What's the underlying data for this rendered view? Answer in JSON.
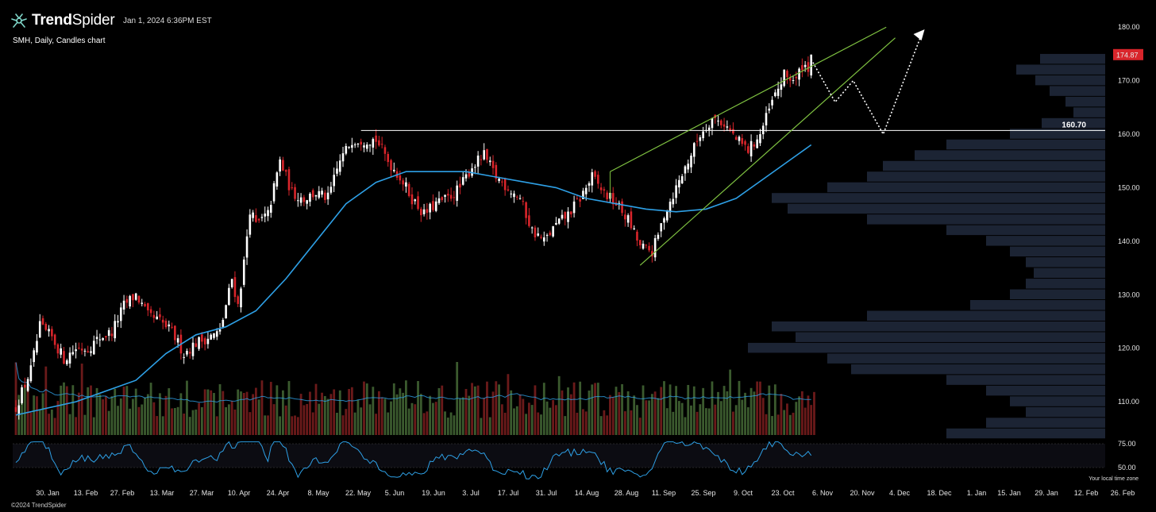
{
  "header": {
    "brand_bold": "Trend",
    "brand_light": "Spider",
    "datetime": "Jan 1, 2024 6:36PM EST",
    "subtitle": "SMH, Daily, Candles chart",
    "copyright": "©2024 TrendSpider",
    "timezone_note": "Your local time zone"
  },
  "icons": {
    "logo": "spider-logo-icon",
    "arrow": "dotted-projection-arrow"
  },
  "colors": {
    "up": "#ffffff",
    "down": "#d9252b",
    "ma": "#2ea0e6",
    "wedge": "#7fc241",
    "vol_up": "#3b5a2e",
    "vol_down": "#6b1a1a",
    "profile": "#1c2434",
    "price_badge": "#d9252b",
    "rsi": "#2ea0e6"
  },
  "chart_data": {
    "type": "candlestick",
    "symbol": "SMH",
    "interval": "Daily",
    "y_axis": {
      "ticks": [
        "180.00",
        "170.00",
        "160.00",
        "150.00",
        "140.00",
        "130.00",
        "120.00",
        "110.00"
      ],
      "range": [
        102,
        183
      ]
    },
    "x_axis": {
      "ticks": [
        "30. Jan",
        "13. Feb",
        "27. Feb",
        "13. Mar",
        "27. Mar",
        "10. Apr",
        "24. Apr",
        "8. May",
        "22. May",
        "5. Jun",
        "19. Jun",
        "3. Jul",
        "17. Jul",
        "31. Jul",
        "14. Aug",
        "28. Aug",
        "11. Sep",
        "25. Sep",
        "9. Oct",
        "23. Oct",
        "6. Nov",
        "20. Nov",
        "4. Dec",
        "18. Dec",
        "1. Jan",
        "15. Jan",
        "29. Jan",
        "12. Feb",
        "26. Feb"
      ]
    },
    "last_price": "174.87",
    "horizontal_level": {
      "value": 160.7,
      "label": "160.70"
    },
    "close_anchors": [
      [
        0,
        109
      ],
      [
        5,
        116
      ],
      [
        8,
        124
      ],
      [
        12,
        122
      ],
      [
        16,
        118
      ],
      [
        20,
        120
      ],
      [
        24,
        120
      ],
      [
        28,
        122
      ],
      [
        32,
        123
      ],
      [
        36,
        128
      ],
      [
        40,
        130
      ],
      [
        44,
        126
      ],
      [
        48,
        125
      ],
      [
        52,
        123
      ],
      [
        56,
        119
      ],
      [
        60,
        121
      ],
      [
        64,
        122
      ],
      [
        68,
        123
      ],
      [
        72,
        133
      ],
      [
        74,
        128
      ],
      [
        76,
        136
      ],
      [
        78,
        146
      ],
      [
        80,
        143
      ],
      [
        84,
        145
      ],
      [
        88,
        155
      ],
      [
        92,
        149
      ],
      [
        96,
        148
      ],
      [
        100,
        149
      ],
      [
        104,
        148
      ],
      [
        108,
        155
      ],
      [
        112,
        159
      ],
      [
        116,
        159
      ],
      [
        120,
        159
      ],
      [
        124,
        155
      ],
      [
        128,
        152
      ],
      [
        132,
        148
      ],
      [
        136,
        145
      ],
      [
        140,
        147
      ],
      [
        144,
        148
      ],
      [
        148,
        150
      ],
      [
        152,
        154
      ],
      [
        156,
        156
      ],
      [
        160,
        152
      ],
      [
        164,
        150
      ],
      [
        168,
        148
      ],
      [
        172,
        142
      ],
      [
        176,
        140
      ],
      [
        180,
        143
      ],
      [
        184,
        145
      ],
      [
        188,
        148
      ],
      [
        192,
        152
      ],
      [
        196,
        149
      ],
      [
        200,
        147
      ],
      [
        204,
        144
      ],
      [
        208,
        139
      ],
      [
        212,
        138
      ],
      [
        214,
        141
      ],
      [
        216,
        145
      ],
      [
        220,
        150
      ],
      [
        224,
        155
      ],
      [
        228,
        160
      ],
      [
        232,
        163
      ],
      [
        236,
        162
      ],
      [
        240,
        159
      ],
      [
        244,
        157
      ],
      [
        248,
        160
      ],
      [
        252,
        166
      ],
      [
        256,
        171
      ],
      [
        260,
        170
      ],
      [
        262,
        173
      ],
      [
        264,
        172.5
      ],
      [
        265,
        174.87
      ]
    ],
    "moving_average": {
      "anchors": [
        [
          0,
          107.5
        ],
        [
          20,
          110
        ],
        [
          40,
          114
        ],
        [
          50,
          119
        ],
        [
          60,
          122.5
        ],
        [
          70,
          124
        ],
        [
          80,
          127
        ],
        [
          90,
          133
        ],
        [
          100,
          140
        ],
        [
          110,
          147
        ],
        [
          120,
          151
        ],
        [
          130,
          153
        ],
        [
          140,
          153
        ],
        [
          150,
          153
        ],
        [
          160,
          152
        ],
        [
          170,
          151
        ],
        [
          180,
          150
        ],
        [
          190,
          148
        ],
        [
          200,
          147
        ],
        [
          210,
          146
        ],
        [
          220,
          145.5
        ],
        [
          230,
          146
        ],
        [
          240,
          148
        ],
        [
          250,
          152
        ],
        [
          260,
          156
        ],
        [
          265,
          158
        ]
      ]
    },
    "wedge_upper": [
      [
        198,
        153
      ],
      [
        290,
        180
      ]
    ],
    "wedge_lower": [
      [
        208,
        135.5
      ],
      [
        293,
        178
      ]
    ],
    "projection_path": [
      [
        265,
        174
      ],
      [
        273,
        166
      ],
      [
        279,
        170
      ],
      [
        289,
        160
      ],
      [
        302,
        179
      ]
    ],
    "volume_profile": [
      {
        "price": 174,
        "width": 82
      },
      {
        "price": 172,
        "width": 112
      },
      {
        "price": 170,
        "width": 88
      },
      {
        "price": 168,
        "width": 70
      },
      {
        "price": 166,
        "width": 50
      },
      {
        "price": 164,
        "width": 40
      },
      {
        "price": 162,
        "width": 80
      },
      {
        "price": 160,
        "width": 120
      },
      {
        "price": 158,
        "width": 200
      },
      {
        "price": 156,
        "width": 240
      },
      {
        "price": 154,
        "width": 280
      },
      {
        "price": 152,
        "width": 300
      },
      {
        "price": 150,
        "width": 350
      },
      {
        "price": 148,
        "width": 420
      },
      {
        "price": 146,
        "width": 400
      },
      {
        "price": 144,
        "width": 300
      },
      {
        "price": 142,
        "width": 200
      },
      {
        "price": 140,
        "width": 150
      },
      {
        "price": 138,
        "width": 120
      },
      {
        "price": 136,
        "width": 100
      },
      {
        "price": 134,
        "width": 90
      },
      {
        "price": 132,
        "width": 100
      },
      {
        "price": 130,
        "width": 120
      },
      {
        "price": 128,
        "width": 170
      },
      {
        "price": 126,
        "width": 300
      },
      {
        "price": 124,
        "width": 420
      },
      {
        "price": 122,
        "width": 390
      },
      {
        "price": 120,
        "width": 450
      },
      {
        "price": 118,
        "width": 350
      },
      {
        "price": 116,
        "width": 320
      },
      {
        "price": 114,
        "width": 200
      },
      {
        "price": 112,
        "width": 150
      },
      {
        "price": 110,
        "width": 120
      },
      {
        "price": 108,
        "width": 100
      },
      {
        "price": 106,
        "width": 150
      },
      {
        "price": 104,
        "width": 200
      }
    ],
    "rsi": {
      "ticks": [
        "75.00",
        "50.00"
      ],
      "range": [
        35,
        80
      ]
    }
  }
}
